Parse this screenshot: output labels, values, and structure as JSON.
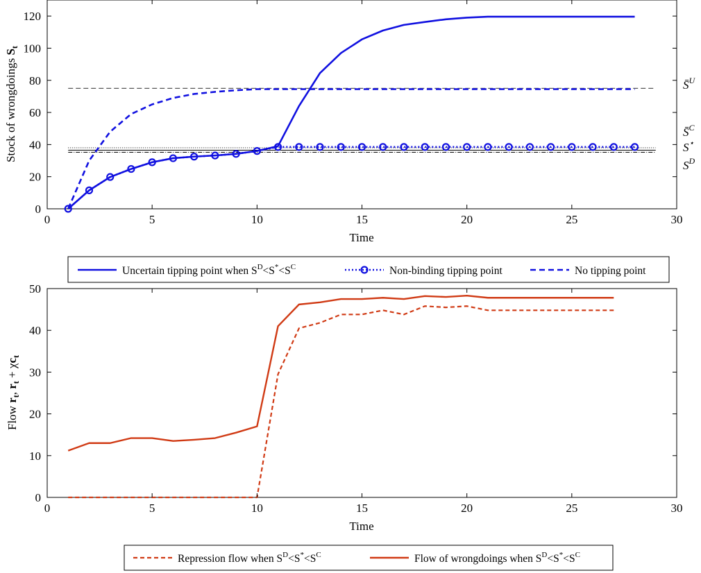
{
  "colors": {
    "blue": "#1010e0",
    "red": "#d03a14",
    "ref_dark": "#555555",
    "ref_black": "#000000"
  },
  "chart_data": [
    {
      "type": "line",
      "title": "",
      "xlabel": "Time",
      "ylabel": "Stock of wrongdoings S_t",
      "xlim": [
        0,
        30
      ],
      "ylim": [
        0,
        130
      ],
      "xticks": [
        0,
        5,
        10,
        15,
        20,
        25,
        30
      ],
      "yticks": [
        0,
        20,
        40,
        60,
        80,
        100,
        120
      ],
      "grid": false,
      "legend_position": "below",
      "series": [
        {
          "name": "Uncertain tipping point when S^D<S^*<S^C",
          "style": "solid",
          "x": [
            1,
            2,
            3,
            4,
            5,
            6,
            7,
            8,
            9,
            10,
            11,
            12,
            13,
            14,
            15,
            16,
            17,
            18,
            19,
            20,
            21,
            22,
            23,
            24,
            25,
            26,
            27,
            28
          ],
          "y": [
            0,
            11.5,
            19.8,
            24.8,
            29,
            31.5,
            32.5,
            33.2,
            34.2,
            36,
            39,
            64,
            84.5,
            97,
            105.5,
            111,
            114.5,
            116.3,
            118,
            119,
            119.6,
            119.6,
            119.6,
            119.6,
            119.6,
            119.6,
            119.6,
            119.6
          ]
        },
        {
          "name": "Non-binding tipping point",
          "style": "dotted-circle",
          "x": [
            1,
            2,
            3,
            4,
            5,
            6,
            7,
            8,
            9,
            10,
            11,
            12,
            13,
            14,
            15,
            16,
            17,
            18,
            19,
            20,
            21,
            22,
            23,
            24,
            25,
            26,
            27,
            28
          ],
          "y": [
            0,
            11.5,
            19.8,
            24.8,
            29,
            31.5,
            32.5,
            33.2,
            34.2,
            36,
            38.5,
            38.5,
            38.5,
            38.5,
            38.5,
            38.5,
            38.5,
            38.5,
            38.5,
            38.5,
            38.5,
            38.5,
            38.5,
            38.5,
            38.5,
            38.5,
            38.5,
            38.5
          ]
        },
        {
          "name": "No tipping point",
          "style": "dashed",
          "x": [
            1,
            2,
            3,
            4,
            5,
            6,
            7,
            8,
            9,
            10,
            11,
            12,
            13,
            14,
            15,
            16,
            17,
            18,
            19,
            20,
            21,
            22,
            23,
            24,
            25,
            26,
            27,
            28
          ],
          "y": [
            0,
            30,
            48,
            59,
            65,
            69,
            71.5,
            72.8,
            73.8,
            74.5,
            74.5,
            74.5,
            74.5,
            74.5,
            74.5,
            74.5,
            74.5,
            74.5,
            74.5,
            74.5,
            74.5,
            74.5,
            74.5,
            74.5,
            74.5,
            74.5,
            74.5,
            74.5
          ]
        }
      ],
      "reference_lines": [
        {
          "label": "S̄",
          "sup": "U",
          "y": 75,
          "style": "dashed"
        },
        {
          "label": "S̄",
          "sup": "C",
          "y": 38,
          "style": "dotted"
        },
        {
          "label": "S",
          "sup": "⋆",
          "y": 36.5,
          "style": "solid"
        },
        {
          "label": "S",
          "sup": "D",
          "y": 35.2,
          "style": "dashdot"
        }
      ]
    },
    {
      "type": "line",
      "title": "",
      "xlabel": "Time",
      "ylabel": "Flow r_t, r_t + χc_t",
      "xlim": [
        0,
        30
      ],
      "ylim": [
        0,
        50
      ],
      "xticks": [
        0,
        5,
        10,
        15,
        20,
        25,
        30
      ],
      "yticks": [
        0,
        10,
        20,
        30,
        40,
        50
      ],
      "grid": false,
      "legend_position": "below",
      "series": [
        {
          "name": "Repression flow when S^D<S^*<S^C",
          "style": "dashed",
          "x": [
            1,
            2,
            3,
            4,
            5,
            6,
            7,
            8,
            9,
            10,
            11,
            12,
            13,
            14,
            15,
            16,
            17,
            18,
            19,
            20,
            21,
            22,
            23,
            24,
            25,
            26,
            27
          ],
          "y": [
            0,
            0,
            0,
            0,
            0,
            0,
            0,
            0,
            0,
            0,
            29.5,
            40.5,
            41.8,
            43.8,
            43.8,
            44.8,
            43.8,
            45.8,
            45.5,
            45.8,
            44.8,
            44.8,
            44.8,
            44.8,
            44.8,
            44.8,
            44.8
          ]
        },
        {
          "name": "Flow of wrongdoings when S^D<S^*<S^C",
          "style": "solid",
          "x": [
            1,
            2,
            3,
            4,
            5,
            6,
            7,
            8,
            9,
            10,
            11,
            12,
            13,
            14,
            15,
            16,
            17,
            18,
            19,
            20,
            21,
            22,
            23,
            24,
            25,
            26,
            27
          ],
          "y": [
            11.2,
            13,
            13,
            14.2,
            14.2,
            13.5,
            13.8,
            14.2,
            15.5,
            17,
            41,
            46.2,
            46.7,
            47.5,
            47.5,
            47.8,
            47.5,
            48.2,
            48,
            48.3,
            47.8,
            47.8,
            47.8,
            47.8,
            47.8,
            47.8,
            47.8
          ]
        }
      ]
    }
  ]
}
